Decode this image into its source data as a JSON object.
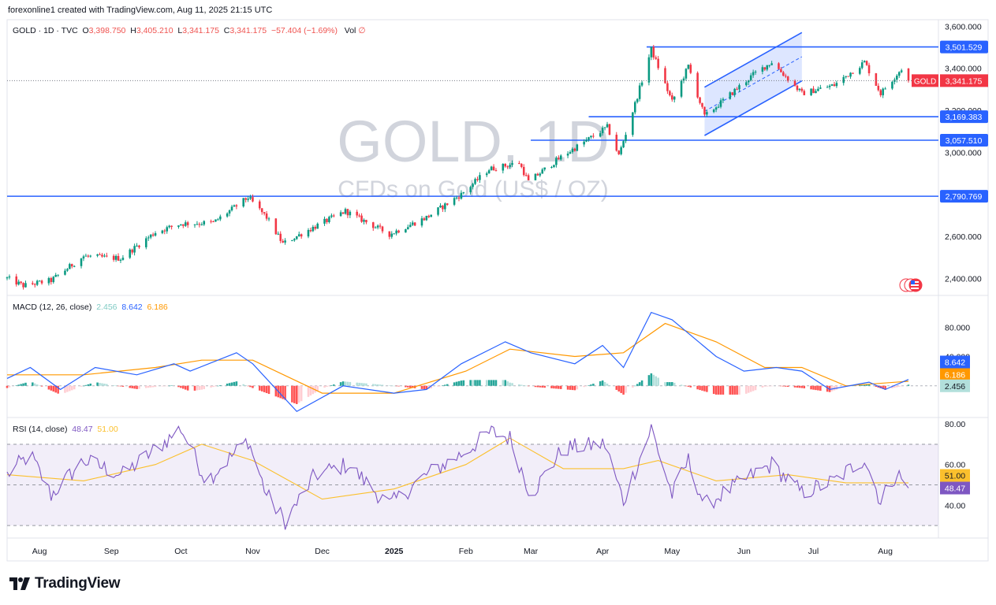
{
  "attribution": "forexonline1 created with TradingView.com, Aug 11, 2025 21:15 UTC",
  "brand": {
    "name": "TradingView",
    "logo_icon": "tv-logo-icon"
  },
  "legend": {
    "symbol": "GOLD · 1D · TVC",
    "open_label": "O",
    "open": "3,398.750",
    "high_label": "H",
    "high": "3,405.210",
    "low_label": "L",
    "low": "3,341.175",
    "close_label": "C",
    "close": "3,341.175",
    "change": "−57.404 (−1.69%)",
    "vol_label": "Vol",
    "vol_value": "∅"
  },
  "colors": {
    "up": "#089981",
    "down": "#f23645",
    "level_line": "#2962ff",
    "macd": "#2962ff",
    "signal": "#ff9800",
    "rsi": "#7e57c2",
    "rsi_ma": "#fbc02d",
    "hist_up_strong": "#26a69a",
    "hist_up_weak": "#b2dfdb",
    "hist_down_strong": "#ff5252",
    "hist_down_weak": "#ffcdd2",
    "price_tag": "#f23645",
    "watermark": "#d1d4dc"
  },
  "chart_data": [
    {
      "type": "candlestick",
      "watermark_title": "GOLD, 1D",
      "watermark_subtitle": "CFDs on Gold (US$ / OZ)",
      "y_ticks": [
        "3,600.000",
        "3,400.000",
        "3,200.000",
        "3,000.000",
        "2,800.000",
        "2,600.000",
        "2,400.000"
      ],
      "y_tick_values": [
        3600,
        3400,
        3200,
        3000,
        2800,
        2600,
        2400
      ],
      "ylim": [
        2330,
        3620
      ],
      "x_range": [
        "2024-07-18",
        "2025-08-11"
      ],
      "time_labels": [
        "Aug",
        "Sep",
        "Oct",
        "Nov",
        "Dec",
        "2025",
        "Feb",
        "Mar",
        "Apr",
        "May",
        "Jun",
        "Jul",
        "Aug"
      ],
      "time_label_dates": [
        "2024-08-01",
        "2024-09-01",
        "2024-10-01",
        "2024-11-01",
        "2024-12-01",
        "2025-01-01",
        "2025-02-01",
        "2025-03-01",
        "2025-04-01",
        "2025-05-01",
        "2025-06-01",
        "2025-07-01",
        "2025-08-01"
      ],
      "close_path": [
        [
          "2024-07-18",
          2400
        ],
        [
          "2024-07-25",
          2365
        ],
        [
          "2024-08-06",
          2390
        ],
        [
          "2024-08-20",
          2505
        ],
        [
          "2024-09-05",
          2495
        ],
        [
          "2024-09-20",
          2620
        ],
        [
          "2024-10-01",
          2660
        ],
        [
          "2024-10-15",
          2665
        ],
        [
          "2024-10-30",
          2785
        ],
        [
          "2024-11-07",
          2690
        ],
        [
          "2024-11-14",
          2565
        ],
        [
          "2024-11-25",
          2630
        ],
        [
          "2024-12-11",
          2720
        ],
        [
          "2024-12-30",
          2610
        ],
        [
          "2025-01-15",
          2690
        ],
        [
          "2025-01-30",
          2800
        ],
        [
          "2025-02-11",
          2920
        ],
        [
          "2025-02-24",
          2950
        ],
        [
          "2025-02-28",
          2860
        ],
        [
          "2025-03-15",
          2985
        ],
        [
          "2025-04-03",
          3120
        ],
        [
          "2025-04-08",
          2985
        ],
        [
          "2025-04-15",
          3230
        ],
        [
          "2025-04-22",
          3490
        ],
        [
          "2025-05-01",
          3240
        ],
        [
          "2025-05-08",
          3410
        ],
        [
          "2025-05-15",
          3170
        ],
        [
          "2025-06-05",
          3370
        ],
        [
          "2025-06-13",
          3430
        ],
        [
          "2025-06-26",
          3280
        ],
        [
          "2025-07-10",
          3320
        ],
        [
          "2025-07-23",
          3430
        ],
        [
          "2025-07-30",
          3280
        ],
        [
          "2025-08-08",
          3398
        ],
        [
          "2025-08-11",
          3341
        ]
      ],
      "levels": [
        {
          "value": 3501.529,
          "label": "3,501.529",
          "from": "2025-04-20"
        },
        {
          "value": 3169.383,
          "label": "3,169.383",
          "from": "2025-03-26"
        },
        {
          "value": 3057.51,
          "label": "3,057.510",
          "from": "2025-03-01"
        },
        {
          "value": 2790.769,
          "label": "2,790.769",
          "from": "2024-07-18"
        }
      ],
      "channel": {
        "upper": [
          [
            "2025-05-15",
            3310
          ],
          [
            "2025-06-26",
            3570
          ]
        ],
        "lower": [
          [
            "2025-05-15",
            3080
          ],
          [
            "2025-06-26",
            3340
          ]
        ]
      },
      "last_price": {
        "symbol": "GOLD",
        "value": 3341.175,
        "label": "3,341.175"
      }
    },
    {
      "type": "line",
      "name": "MACD (12, 26, close)",
      "legend_values": [
        "2.456",
        "8.642",
        "6.186"
      ],
      "y_ticks": [
        "80.000",
        "40.000"
      ],
      "y_tick_values": [
        80,
        40
      ],
      "ylim": [
        -40,
        120
      ],
      "macd_path": [
        [
          "2024-07-18",
          10
        ],
        [
          "2024-07-28",
          25
        ],
        [
          "2024-08-10",
          -5
        ],
        [
          "2024-08-25",
          25
        ],
        [
          "2024-09-12",
          15
        ],
        [
          "2024-09-28",
          30
        ],
        [
          "2024-10-05",
          20
        ],
        [
          "2024-10-25",
          45
        ],
        [
          "2024-11-01",
          30
        ],
        [
          "2024-11-20",
          -35
        ],
        [
          "2024-12-10",
          0
        ],
        [
          "2025-01-01",
          -10
        ],
        [
          "2025-01-15",
          -5
        ],
        [
          "2025-01-30",
          30
        ],
        [
          "2025-02-18",
          60
        ],
        [
          "2025-03-01",
          45
        ],
        [
          "2025-03-20",
          30
        ],
        [
          "2025-04-01",
          55
        ],
        [
          "2025-04-10",
          25
        ],
        [
          "2025-04-22",
          100
        ],
        [
          "2025-05-01",
          90
        ],
        [
          "2025-05-20",
          40
        ],
        [
          "2025-06-01",
          20
        ],
        [
          "2025-06-15",
          25
        ],
        [
          "2025-06-26",
          20
        ],
        [
          "2025-07-08",
          -5
        ],
        [
          "2025-07-25",
          5
        ],
        [
          "2025-08-01",
          -5
        ],
        [
          "2025-08-11",
          8.642
        ]
      ],
      "signal_path": [
        [
          "2024-07-18",
          15
        ],
        [
          "2024-08-20",
          15
        ],
        [
          "2024-09-20",
          25
        ],
        [
          "2024-10-10",
          35
        ],
        [
          "2024-11-01",
          35
        ],
        [
          "2024-12-01",
          -10
        ],
        [
          "2025-01-01",
          -10
        ],
        [
          "2025-02-01",
          20
        ],
        [
          "2025-02-20",
          50
        ],
        [
          "2025-03-20",
          40
        ],
        [
          "2025-04-10",
          45
        ],
        [
          "2025-04-28",
          85
        ],
        [
          "2025-05-20",
          60
        ],
        [
          "2025-06-10",
          25
        ],
        [
          "2025-06-26",
          25
        ],
        [
          "2025-07-15",
          0
        ],
        [
          "2025-08-11",
          6.186
        ]
      ],
      "histogram_last": 2.456
    },
    {
      "type": "line",
      "name": "RSI (14, close)",
      "legend_values": [
        "48.47",
        "51.00"
      ],
      "y_ticks": [
        "80.00",
        "60.00",
        "40.00"
      ],
      "y_tick_values": [
        80,
        60,
        40
      ],
      "ylim": [
        25,
        82
      ],
      "bands": [
        70,
        30
      ],
      "middle": 50,
      "rsi_path": [
        [
          "2024-07-18",
          55
        ],
        [
          "2024-07-28",
          65
        ],
        [
          "2024-08-06",
          45
        ],
        [
          "2024-08-20",
          62
        ],
        [
          "2024-09-06",
          55
        ],
        [
          "2024-09-25",
          72
        ],
        [
          "2024-10-01",
          78
        ],
        [
          "2024-10-12",
          52
        ],
        [
          "2024-10-30",
          72
        ],
        [
          "2024-11-07",
          45
        ],
        [
          "2024-11-15",
          32
        ],
        [
          "2024-11-28",
          55
        ],
        [
          "2024-12-12",
          60
        ],
        [
          "2024-12-30",
          40
        ],
        [
          "2025-01-15",
          55
        ],
        [
          "2025-01-30",
          65
        ],
        [
          "2025-02-12",
          76
        ],
        [
          "2025-02-20",
          73
        ],
        [
          "2025-03-01",
          45
        ],
        [
          "2025-03-15",
          68
        ],
        [
          "2025-04-02",
          70
        ],
        [
          "2025-04-10",
          42
        ],
        [
          "2025-04-22",
          78
        ],
        [
          "2025-05-01",
          45
        ],
        [
          "2025-05-08",
          62
        ],
        [
          "2025-05-15",
          40
        ],
        [
          "2025-06-05",
          55
        ],
        [
          "2025-06-13",
          60
        ],
        [
          "2025-06-26",
          46
        ],
        [
          "2025-07-10",
          52
        ],
        [
          "2025-07-23",
          63
        ],
        [
          "2025-07-30",
          42
        ],
        [
          "2025-08-06",
          56
        ],
        [
          "2025-08-11",
          48.47
        ]
      ],
      "ma_path": [
        [
          "2024-07-18",
          55
        ],
        [
          "2024-08-20",
          52
        ],
        [
          "2024-09-20",
          60
        ],
        [
          "2024-10-10",
          70
        ],
        [
          "2024-11-01",
          62
        ],
        [
          "2024-12-01",
          43
        ],
        [
          "2025-01-01",
          48
        ],
        [
          "2025-02-01",
          60
        ],
        [
          "2025-02-20",
          73
        ],
        [
          "2025-03-15",
          58
        ],
        [
          "2025-04-10",
          58
        ],
        [
          "2025-04-25",
          62
        ],
        [
          "2025-05-20",
          52
        ],
        [
          "2025-06-20",
          55
        ],
        [
          "2025-07-15",
          51
        ],
        [
          "2025-08-11",
          51.0
        ]
      ],
      "last_rsi": "48.47",
      "last_ma": "51.00"
    }
  ]
}
